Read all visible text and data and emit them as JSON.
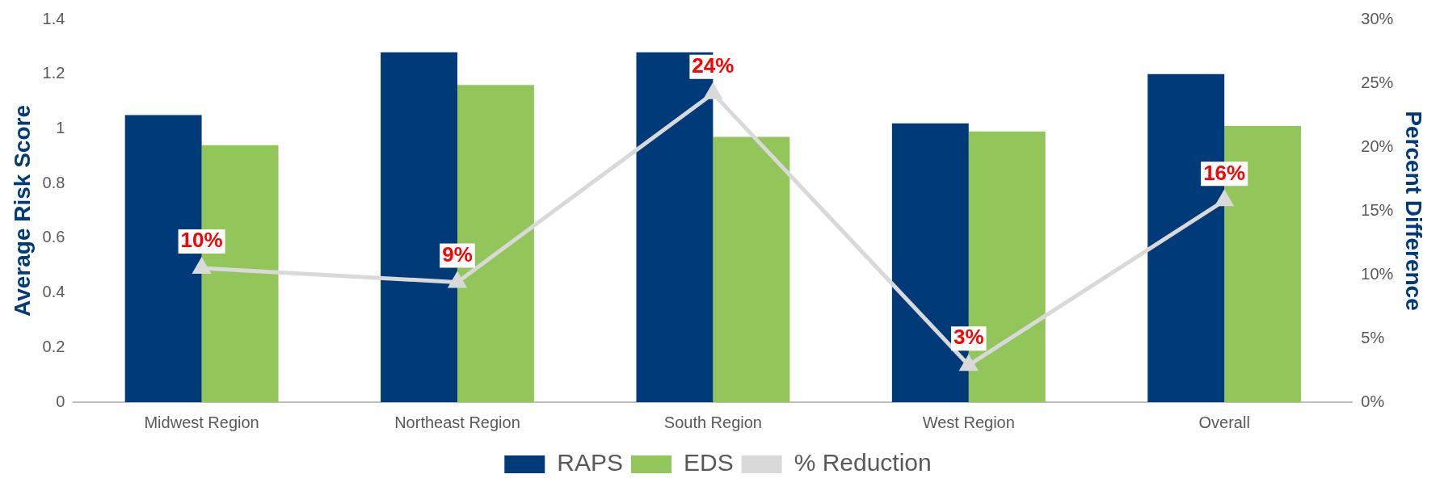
{
  "chart_data": {
    "type": "bar",
    "ylabel": "Average Risk Score",
    "y2label": "Percent Difference",
    "categories": [
      "Midwest Region",
      "Northeast Region",
      "South Region",
      "West Region",
      "Overall"
    ],
    "series": [
      {
        "name": "RAPS",
        "color": "#003a78",
        "values": [
          1.05,
          1.28,
          1.28,
          1.02,
          1.2
        ]
      },
      {
        "name": "EDS",
        "color": "#92c55a",
        "values": [
          0.94,
          1.16,
          0.97,
          0.99,
          1.01
        ]
      },
      {
        "name": "% Reduction",
        "type": "line",
        "axis": "y2",
        "color": "#d9d9d9",
        "marker": "triangle",
        "values": [
          10.5,
          9.4,
          24.2,
          2.9,
          15.8
        ],
        "value_labels": [
          "10%",
          "9%",
          "24%",
          "3%",
          "16%"
        ]
      }
    ],
    "ylim": [
      0,
      1.4
    ],
    "yticks": [
      0,
      0.2,
      0.4,
      0.6,
      0.8,
      1,
      1.2,
      1.4
    ],
    "y2lim": [
      0,
      30
    ],
    "y2ticks": [
      {
        "value": 0,
        "label": "0%"
      },
      {
        "value": 5,
        "label": "5%"
      },
      {
        "value": 10,
        "label": "10%"
      },
      {
        "value": 15,
        "label": "15%"
      },
      {
        "value": 20,
        "label": "20%"
      },
      {
        "value": 25,
        "label": "25%"
      },
      {
        "value": 30,
        "label": "30%"
      }
    ],
    "grid": false,
    "legend": "bottom"
  }
}
